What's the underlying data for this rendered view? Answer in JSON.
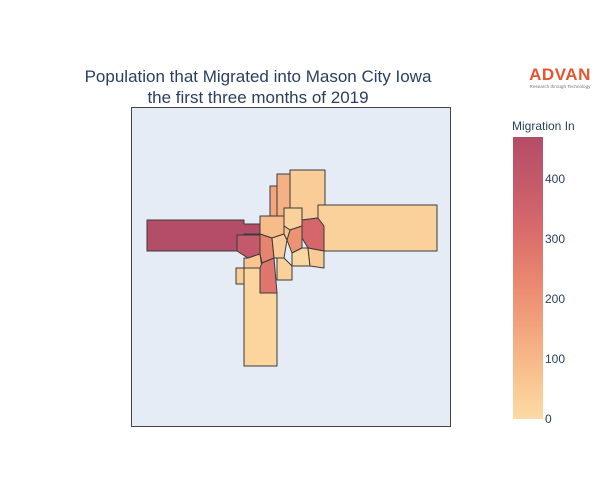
{
  "title": {
    "line1": "Population that Migrated into Mason City Iowa",
    "line2": "the first three months of 2019"
  },
  "logo": {
    "word": "ADVAN",
    "tagline": "Research through Technology",
    "color": "#e8542d"
  },
  "colorbar": {
    "title": "Migration In",
    "range": [
      0,
      470
    ],
    "ticks": [
      {
        "label": "0",
        "value": 0
      },
      {
        "label": "100",
        "value": 100
      },
      {
        "label": "200",
        "value": 200
      },
      {
        "label": "300",
        "value": 300
      },
      {
        "label": "400",
        "value": 400
      }
    ],
    "colorscale": [
      "#fcdba4",
      "#f8c08d",
      "#f2a27b",
      "#e8866f",
      "#d96b6b",
      "#c55a6a",
      "#b44d68"
    ]
  },
  "map": {
    "background": "#e5ecf6",
    "border_color": "#444444",
    "regions": [
      {
        "id": "west",
        "value": 470
      },
      {
        "id": "east",
        "value": 30
      },
      {
        "id": "south",
        "value": 20
      },
      {
        "id": "north-strip",
        "value": 120
      },
      {
        "id": "north-main",
        "value": 40
      },
      {
        "id": "north-left",
        "value": 150
      },
      {
        "id": "center-east",
        "value": 330
      },
      {
        "id": "center-east-2",
        "value": 200
      },
      {
        "id": "center-west",
        "value": 60
      },
      {
        "id": "center-nw",
        "value": 400
      },
      {
        "id": "center-tract-a",
        "value": 90
      },
      {
        "id": "center-tract-b",
        "value": 30
      },
      {
        "id": "center-tract-c",
        "value": 240
      },
      {
        "id": "center-tract-d",
        "value": 50
      },
      {
        "id": "south-center",
        "value": 280
      },
      {
        "id": "sw-small",
        "value": 40
      },
      {
        "id": "se-small",
        "value": 30
      },
      {
        "id": "center-small-1",
        "value": 70
      },
      {
        "id": "center-small-2",
        "value": 10
      },
      {
        "id": "south-right",
        "value": 50
      }
    ]
  }
}
